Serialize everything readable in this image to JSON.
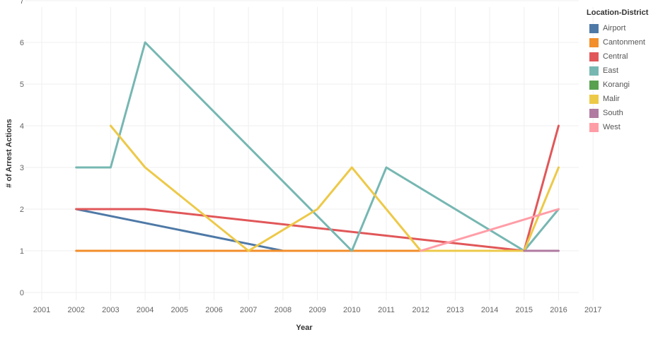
{
  "chart_data": {
    "type": "line",
    "xlabel": "Year",
    "ylabel": "# of Arrest Actions",
    "xlim": [
      2001,
      2017
    ],
    "ylim": [
      0,
      7
    ],
    "x_ticks": [
      2001,
      2002,
      2003,
      2004,
      2005,
      2006,
      2007,
      2008,
      2009,
      2010,
      2011,
      2012,
      2013,
      2014,
      2015,
      2016,
      2017
    ],
    "y_ticks": [
      0,
      1,
      2,
      3,
      4,
      5,
      6,
      7
    ],
    "grid": true,
    "legend_position": "right",
    "legend_title": "Location-District",
    "series": [
      {
        "name": "Airport",
        "color": "#4e79a7",
        "x": [
          2002,
          2008,
          2009,
          2010,
          2011,
          2012
        ],
        "values": [
          2,
          1,
          1,
          1,
          1,
          1
        ]
      },
      {
        "name": "Cantonment",
        "color": "#f28e2b",
        "x": [
          2002,
          2015
        ],
        "values": [
          1,
          1
        ]
      },
      {
        "name": "Central",
        "color": "#e15759",
        "x": [
          2002,
          2004,
          2015,
          2016
        ],
        "values": [
          2,
          2,
          1,
          4
        ]
      },
      {
        "name": "East",
        "color": "#76b7b2",
        "x": [
          2002,
          2003,
          2004,
          2010,
          2011,
          2015,
          2016
        ],
        "values": [
          3,
          3,
          6,
          1,
          3,
          1,
          2
        ]
      },
      {
        "name": "Korangi",
        "color": "#59a14f",
        "x": [],
        "values": []
      },
      {
        "name": "Malir",
        "color": "#edc948",
        "x": [
          2003,
          2004,
          2007,
          2009,
          2010,
          2012,
          2015,
          2016
        ],
        "values": [
          4,
          3,
          1,
          2,
          3,
          1,
          1,
          3
        ]
      },
      {
        "name": "South",
        "color": "#b07aa1",
        "x": [
          2015,
          2016
        ],
        "values": [
          1,
          1
        ]
      },
      {
        "name": "West",
        "color": "#ff9da7",
        "x": [
          2012,
          2016
        ],
        "values": [
          1,
          2
        ]
      }
    ]
  }
}
